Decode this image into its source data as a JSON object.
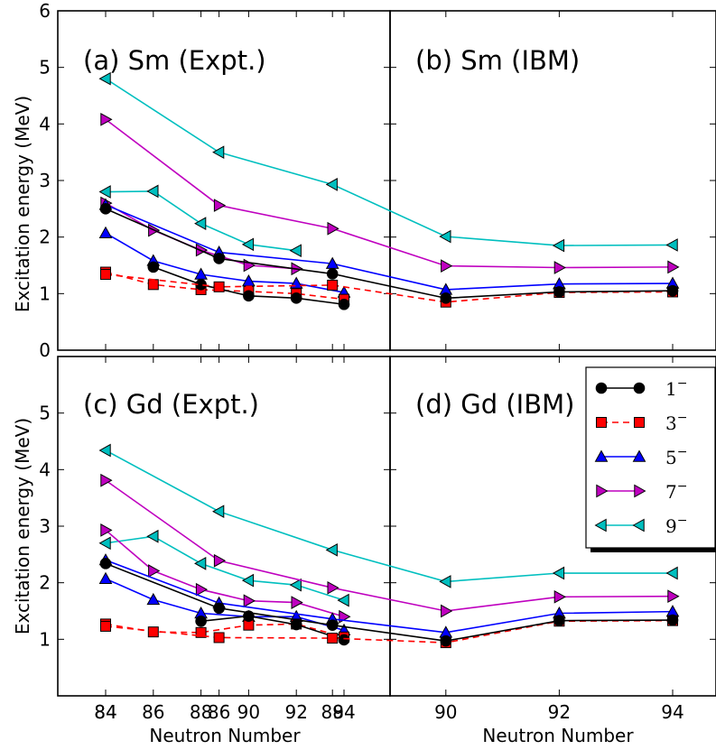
{
  "chart_data": {
    "type": "line",
    "x_shared_label": "Neutron Number",
    "y_shared_label": "Excitation energy (MeV)",
    "x_ticks": [
      84,
      86,
      88,
      90,
      92,
      94
    ],
    "xlim": [
      82.5,
      95.8
    ],
    "series_styles": [
      {
        "key": "1-",
        "color": "#000000",
        "marker": "circle",
        "dash": "solid"
      },
      {
        "key": "3-",
        "color": "#ff0000",
        "marker": "square",
        "dash": "dashed"
      },
      {
        "key": "5-",
        "color": "#0000ff",
        "marker": "triangle-up",
        "dash": "solid"
      },
      {
        "key": "7-",
        "color": "#bf00bf",
        "marker": "triangle-right",
        "dash": "solid"
      },
      {
        "key": "9-",
        "color": "#00bfbf",
        "marker": "triangle-left",
        "dash": "solid"
      }
    ],
    "legend": {
      "position": "top-right of panel (d)",
      "entries": [
        {
          "series": "1-",
          "label": "1",
          "sup": "−"
        },
        {
          "series": "3-",
          "label": "3",
          "sup": "−"
        },
        {
          "series": "5-",
          "label": "5",
          "sup": "−"
        },
        {
          "series": "7-",
          "label": "7",
          "sup": "−"
        },
        {
          "series": "9-",
          "label": "9",
          "sup": "−"
        }
      ]
    },
    "panels": [
      {
        "title": "(a) Sm (Expt.)",
        "ylim": [
          0,
          6
        ],
        "y_ticks": [
          0,
          1,
          2,
          3,
          4,
          5,
          6
        ],
        "series": [
          {
            "key": "1-",
            "x": [
              86,
              88,
              90,
              92,
              94
            ],
            "y": [
              1.47,
              1.16,
              0.96,
              0.92,
              0.81
            ]
          },
          {
            "key": "3-",
            "x": [
              84,
              86,
              88,
              90,
              92,
              94
            ],
            "y": [
              1.38,
              1.16,
              1.07,
              1.04,
              1.0,
              0.9
            ]
          },
          {
            "key": "5-",
            "x": [
              84,
              86,
              88,
              90,
              92,
              94
            ],
            "y": [
              2.07,
              1.58,
              1.34,
              1.22,
              1.18,
              1.02
            ]
          },
          {
            "key": "7-",
            "x": [
              84,
              86,
              88,
              90,
              92
            ],
            "y": [
              2.6,
              2.12,
              1.77,
              1.5,
              1.44
            ]
          },
          {
            "key": "9-",
            "x": [
              84,
              86,
              88,
              90,
              92
            ],
            "y": [
              2.8,
              2.81,
              2.24,
              1.87,
              1.76
            ]
          }
        ]
      },
      {
        "title": "(b) Sm (IBM)",
        "ylim": [
          0,
          6
        ],
        "y_ticks": [],
        "series": [
          {
            "key": "1-",
            "x": [
              84,
              86,
              88,
              90,
              92,
              94
            ],
            "y": [
              2.5,
              1.62,
              1.35,
              0.92,
              1.03,
              1.05
            ]
          },
          {
            "key": "3-",
            "x": [
              84,
              86,
              88,
              90,
              92,
              94
            ],
            "y": [
              1.34,
              1.12,
              1.15,
              0.85,
              1.02,
              1.03
            ]
          },
          {
            "key": "5-",
            "x": [
              84,
              86,
              88,
              90,
              92,
              94
            ],
            "y": [
              2.57,
              1.73,
              1.53,
              1.07,
              1.17,
              1.18
            ]
          },
          {
            "key": "7-",
            "x": [
              84,
              86,
              88,
              90,
              92,
              94
            ],
            "y": [
              4.08,
              2.56,
              2.15,
              1.49,
              1.46,
              1.47
            ]
          },
          {
            "key": "9-",
            "x": [
              84,
              86,
              88,
              90,
              92,
              94
            ],
            "y": [
              4.8,
              3.5,
              2.93,
              2.01,
              1.85,
              1.86
            ]
          }
        ]
      },
      {
        "title": "(c) Gd (Expt.)",
        "ylim": [
          0,
          6
        ],
        "y_ticks": [
          1,
          2,
          3,
          4,
          5
        ],
        "series": [
          {
            "key": "1-",
            "x": [
              88,
              90,
              92,
              94
            ],
            "y": [
              1.32,
              1.41,
              1.26,
              0.99
            ]
          },
          {
            "key": "3-",
            "x": [
              84,
              86,
              88,
              90,
              92,
              94
            ],
            "y": [
              1.27,
              1.13,
              1.12,
              1.25,
              1.27,
              1.04
            ]
          },
          {
            "key": "5-",
            "x": [
              84,
              86,
              88,
              90,
              92,
              94
            ],
            "y": [
              2.07,
              1.7,
              1.46,
              1.4,
              1.4,
              1.16
            ]
          },
          {
            "key": "7-",
            "x": [
              84,
              86,
              88,
              90,
              92,
              94
            ],
            "y": [
              2.93,
              2.21,
              1.88,
              1.68,
              1.65,
              1.4
            ]
          },
          {
            "key": "9-",
            "x": [
              84,
              86,
              88,
              90,
              92,
              94
            ],
            "y": [
              2.7,
              2.82,
              2.34,
              2.04,
              1.96,
              1.69
            ]
          }
        ]
      },
      {
        "title": "(d) Gd (IBM)",
        "ylim": [
          0,
          6
        ],
        "y_ticks": [],
        "series": [
          {
            "key": "1-",
            "x": [
              84,
              86,
              88,
              90,
              92,
              94
            ],
            "y": [
              2.34,
              1.55,
              1.25,
              0.97,
              1.33,
              1.34
            ]
          },
          {
            "key": "3-",
            "x": [
              84,
              86,
              88,
              90,
              92,
              94
            ],
            "y": [
              1.23,
              1.03,
              1.02,
              0.94,
              1.32,
              1.33
            ]
          },
          {
            "key": "5-",
            "x": [
              84,
              86,
              88,
              90,
              92,
              94
            ],
            "y": [
              2.4,
              1.64,
              1.36,
              1.12,
              1.46,
              1.49
            ]
          },
          {
            "key": "7-",
            "x": [
              84,
              86,
              88,
              90,
              92,
              94
            ],
            "y": [
              3.81,
              2.39,
              1.91,
              1.5,
              1.75,
              1.76
            ]
          },
          {
            "key": "9-",
            "x": [
              84,
              86,
              88,
              90,
              92,
              94
            ],
            "y": [
              4.34,
              3.26,
              2.58,
              2.02,
              2.17,
              2.17
            ]
          }
        ]
      }
    ]
  }
}
